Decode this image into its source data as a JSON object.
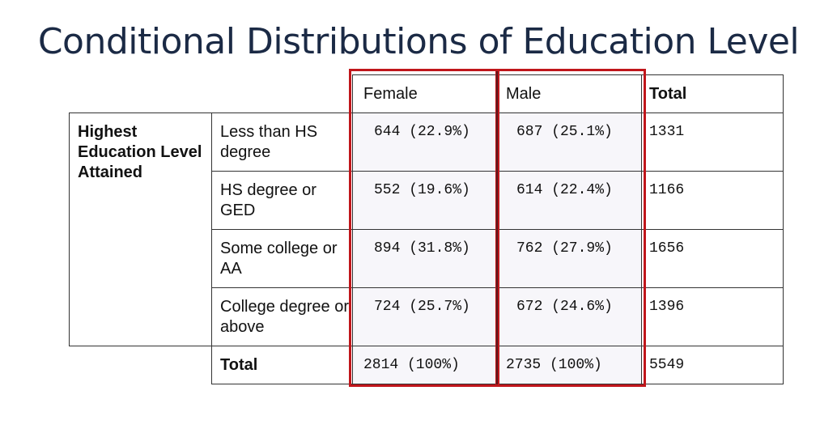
{
  "title": "Conditional Distributions of Education Level",
  "table": {
    "headers": [
      "Female",
      "Male",
      "Total"
    ],
    "row_group_label": "Highest Education Level Attained",
    "rows": [
      {
        "label": "Less than HS degree",
        "female": "644 (22.9%)",
        "male": "687 (25.1%)",
        "total": "1331"
      },
      {
        "label": "HS degree or GED",
        "female": "552 (19.6%)",
        "male": "614 (22.4%)",
        "total": "1166"
      },
      {
        "label": "Some college or AA",
        "female": "894 (31.8%)",
        "male": "762 (27.9%)",
        "total": "1656"
      },
      {
        "label": "College degree or above",
        "female": "724 (25.7%)",
        "male": "672 (24.6%)",
        "total": "1396"
      }
    ],
    "total_row": {
      "label": "Total",
      "female": "2814 (100%)",
      "male": "2735 (100%)",
      "total": "5549"
    }
  },
  "colors": {
    "title": "#1b2a45",
    "highlight_border": "#c0161b",
    "column_shade": "#f7f6fa"
  }
}
